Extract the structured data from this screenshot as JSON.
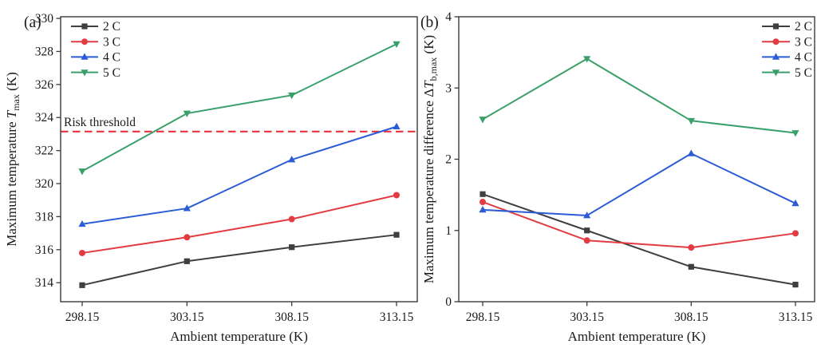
{
  "figure": {
    "background": "#ffffff",
    "frame_color": "#3a3a3a",
    "text_color": "#1a1a1a"
  },
  "chart_data": [
    {
      "type": "line",
      "panel_label": "(a)",
      "xlabel": "Ambient temperature (K)",
      "ylabel_parts": {
        "prefix": "Maximum temperature ",
        "variable": "T",
        "subscript": "max",
        "suffix": " (K)"
      },
      "x": [
        298.15,
        303.15,
        308.15,
        313.15
      ],
      "x_tick_labels": [
        "298.15",
        "303.15",
        "308.15",
        "313.15"
      ],
      "ylim": [
        312.85,
        330.1
      ],
      "y_ticks": [
        314,
        316,
        318,
        320,
        322,
        324,
        326,
        328,
        330
      ],
      "grid": false,
      "legend_position": "top-left",
      "threshold": {
        "label": "Risk threshold",
        "value": 323.15,
        "color": "#e8323e",
        "style": "dashed"
      },
      "series": [
        {
          "name": "2 C",
          "color": "#3f3f3f",
          "marker": "square",
          "values": [
            313.85,
            315.3,
            316.15,
            316.9
          ]
        },
        {
          "name": "3 C",
          "color": "#e23b41",
          "marker": "circle",
          "values": [
            315.8,
            316.75,
            317.85,
            319.3
          ]
        },
        {
          "name": "4 C",
          "color": "#2b5cd5",
          "marker": "triangle-up",
          "values": [
            317.55,
            318.5,
            321.45,
            323.45
          ]
        },
        {
          "name": "5 C",
          "color": "#3aa06a",
          "marker": "triangle-down",
          "values": [
            320.75,
            324.25,
            325.35,
            328.45
          ]
        }
      ]
    },
    {
      "type": "line",
      "panel_label": "(b)",
      "xlabel": "Ambient temperature (K)",
      "ylabel_parts": {
        "prefix": "Maximum temperature difference Δ",
        "variable": "T",
        "subscript": "b,max",
        "suffix": " (K)"
      },
      "x": [
        298.15,
        303.15,
        308.15,
        313.15
      ],
      "x_tick_labels": [
        "298.15",
        "303.15",
        "308.15",
        "313.15"
      ],
      "ylim": [
        0,
        4
      ],
      "y_ticks": [
        0,
        1,
        2,
        3,
        4
      ],
      "grid": false,
      "legend_position": "top-right",
      "threshold": null,
      "series": [
        {
          "name": "2 C",
          "color": "#3f3f3f",
          "marker": "square",
          "values": [
            1.51,
            1.0,
            0.49,
            0.24
          ]
        },
        {
          "name": "3 C",
          "color": "#e23b41",
          "marker": "circle",
          "values": [
            1.4,
            0.86,
            0.76,
            0.96
          ]
        },
        {
          "name": "4 C",
          "color": "#2b5cd5",
          "marker": "triangle-up",
          "values": [
            1.29,
            1.21,
            2.08,
            1.38
          ]
        },
        {
          "name": "5 C",
          "color": "#3aa06a",
          "marker": "triangle-down",
          "values": [
            2.56,
            3.41,
            2.54,
            2.37
          ]
        }
      ]
    }
  ]
}
